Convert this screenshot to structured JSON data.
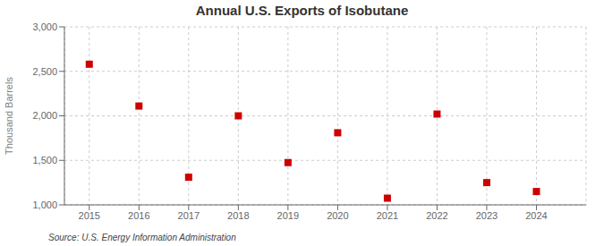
{
  "chart_data": {
    "type": "scatter",
    "title": "Annual U.S. Exports of Isobutane",
    "y_label": "Thousand Barrels",
    "annotation": "Source: U.S. Energy Information Administration",
    "x": [
      2015,
      2016,
      2017,
      2018,
      2019,
      2020,
      2021,
      2022,
      2023,
      2024
    ],
    "values": [
      2580,
      2110,
      1310,
      2000,
      1475,
      1810,
      1075,
      2020,
      1250,
      1150
    ],
    "color": "#cc0000",
    "marker": "square",
    "xlim": [
      2014.5,
      2025.0
    ],
    "xticks": [
      2015,
      2016,
      2017,
      2018,
      2019,
      2020,
      2021,
      2022,
      2023,
      2024
    ],
    "ylim": [
      1000,
      3000
    ],
    "yticks": [
      {
        "value": 1000,
        "label": "1,000"
      },
      {
        "value": 1500,
        "label": "1,500"
      },
      {
        "value": 2000,
        "label": "2,000"
      },
      {
        "value": 2500,
        "label": "2,500"
      },
      {
        "value": 3000,
        "label": "3,000"
      }
    ],
    "grid": true
  }
}
